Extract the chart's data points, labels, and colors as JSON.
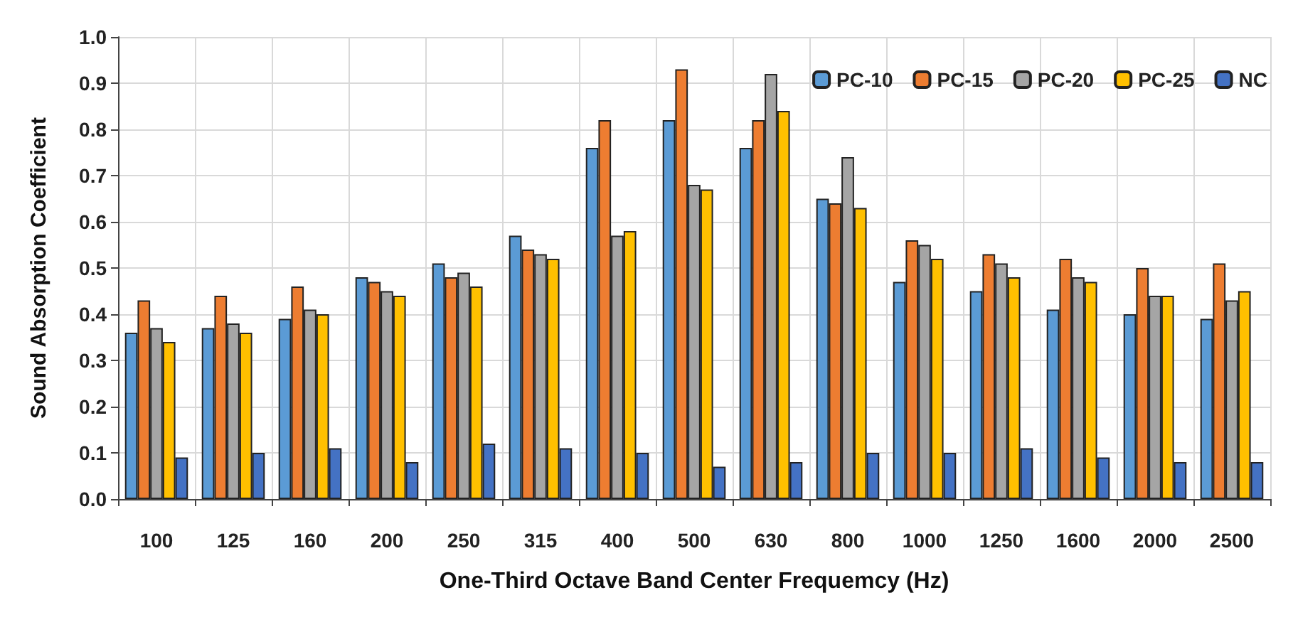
{
  "chart_data": {
    "type": "bar",
    "xlabel": "One-Third Octave Band Center Frequemcy (Hz)",
    "ylabel": "Sound Absorption Coefficient",
    "categories": [
      "100",
      "125",
      "160",
      "200",
      "250",
      "315",
      "400",
      "500",
      "630",
      "800",
      "1000",
      "1250",
      "1600",
      "2000",
      "2500"
    ],
    "series": [
      {
        "name": "PC-10",
        "color": "#5b9bd5",
        "values": [
          0.36,
          0.37,
          0.39,
          0.48,
          0.51,
          0.57,
          0.76,
          0.82,
          0.76,
          0.65,
          0.47,
          0.45,
          0.41,
          0.4,
          0.39
        ]
      },
      {
        "name": "PC-15",
        "color": "#ed7d31",
        "values": [
          0.43,
          0.44,
          0.46,
          0.47,
          0.48,
          0.54,
          0.82,
          0.93,
          0.82,
          0.64,
          0.56,
          0.53,
          0.52,
          0.5,
          0.51
        ]
      },
      {
        "name": "PC-20",
        "color": "#a5a5a5",
        "values": [
          0.37,
          0.38,
          0.41,
          0.45,
          0.49,
          0.53,
          0.57,
          0.68,
          0.92,
          0.74,
          0.55,
          0.51,
          0.48,
          0.44,
          0.43
        ]
      },
      {
        "name": "PC-25",
        "color": "#ffc000",
        "values": [
          0.34,
          0.36,
          0.4,
          0.44,
          0.46,
          0.52,
          0.58,
          0.67,
          0.84,
          0.63,
          0.52,
          0.48,
          0.47,
          0.44,
          0.45
        ]
      },
      {
        "name": "NC",
        "color": "#4472c4",
        "values": [
          0.09,
          0.1,
          0.11,
          0.08,
          0.12,
          0.11,
          0.1,
          0.07,
          0.08,
          0.1,
          0.1,
          0.11,
          0.09,
          0.08,
          0.08
        ]
      }
    ],
    "ylim": [
      0,
      1
    ],
    "yticks": [
      {
        "value": 0,
        "label": "0.0"
      },
      0.1,
      0.2,
      0.3,
      0.4,
      0.5,
      0.6,
      0.7,
      0.8,
      0.9,
      {
        "value": 1,
        "label": "1.0"
      }
    ],
    "grid": true,
    "legend": "top right"
  }
}
